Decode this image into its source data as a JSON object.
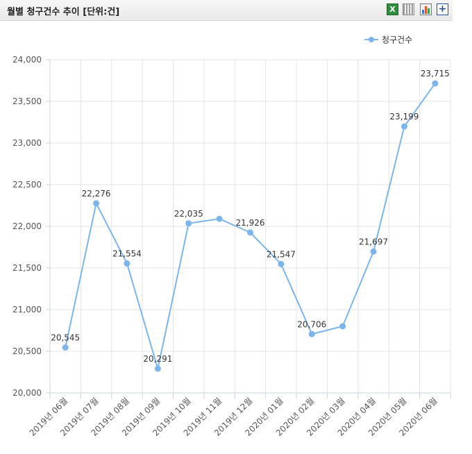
{
  "header": {
    "title": "월별 청구건수 추이 [단위:건]",
    "icons": [
      "excel-export-icon",
      "grid-view-icon",
      "bar-chart-icon",
      "expand-plus-icon"
    ]
  },
  "chart_data": {
    "type": "line",
    "categories": [
      "2019년 06월",
      "2019년 07월",
      "2019년 08월",
      "2019년 09월",
      "2019년 10월",
      "2019년 11월",
      "2019년 12월",
      "2020년 01월",
      "2020년 02월",
      "2020년 03월",
      "2020년 04월",
      "2020년 05월",
      "2020년 06월"
    ],
    "series": [
      {
        "name": "청구건수",
        "color": "#7cb5ec",
        "values": [
          20545,
          22276,
          21554,
          20291,
          22035,
          22090,
          21926,
          21547,
          20706,
          20800,
          21697,
          23199,
          23715
        ],
        "labels": [
          "20,545",
          "22,276",
          "21,554",
          "20,291",
          "22,035",
          "",
          "21,926",
          "21,547",
          "20,706",
          "",
          "21,697",
          "23,199",
          "23,715"
        ]
      }
    ],
    "ylim": [
      20000,
      24000
    ],
    "yticks": [
      "20,000",
      "20,500",
      "21,000",
      "21,500",
      "22,000",
      "22,500",
      "23,000",
      "23,500",
      "24,000"
    ],
    "grid": true,
    "legend": "top-right"
  }
}
